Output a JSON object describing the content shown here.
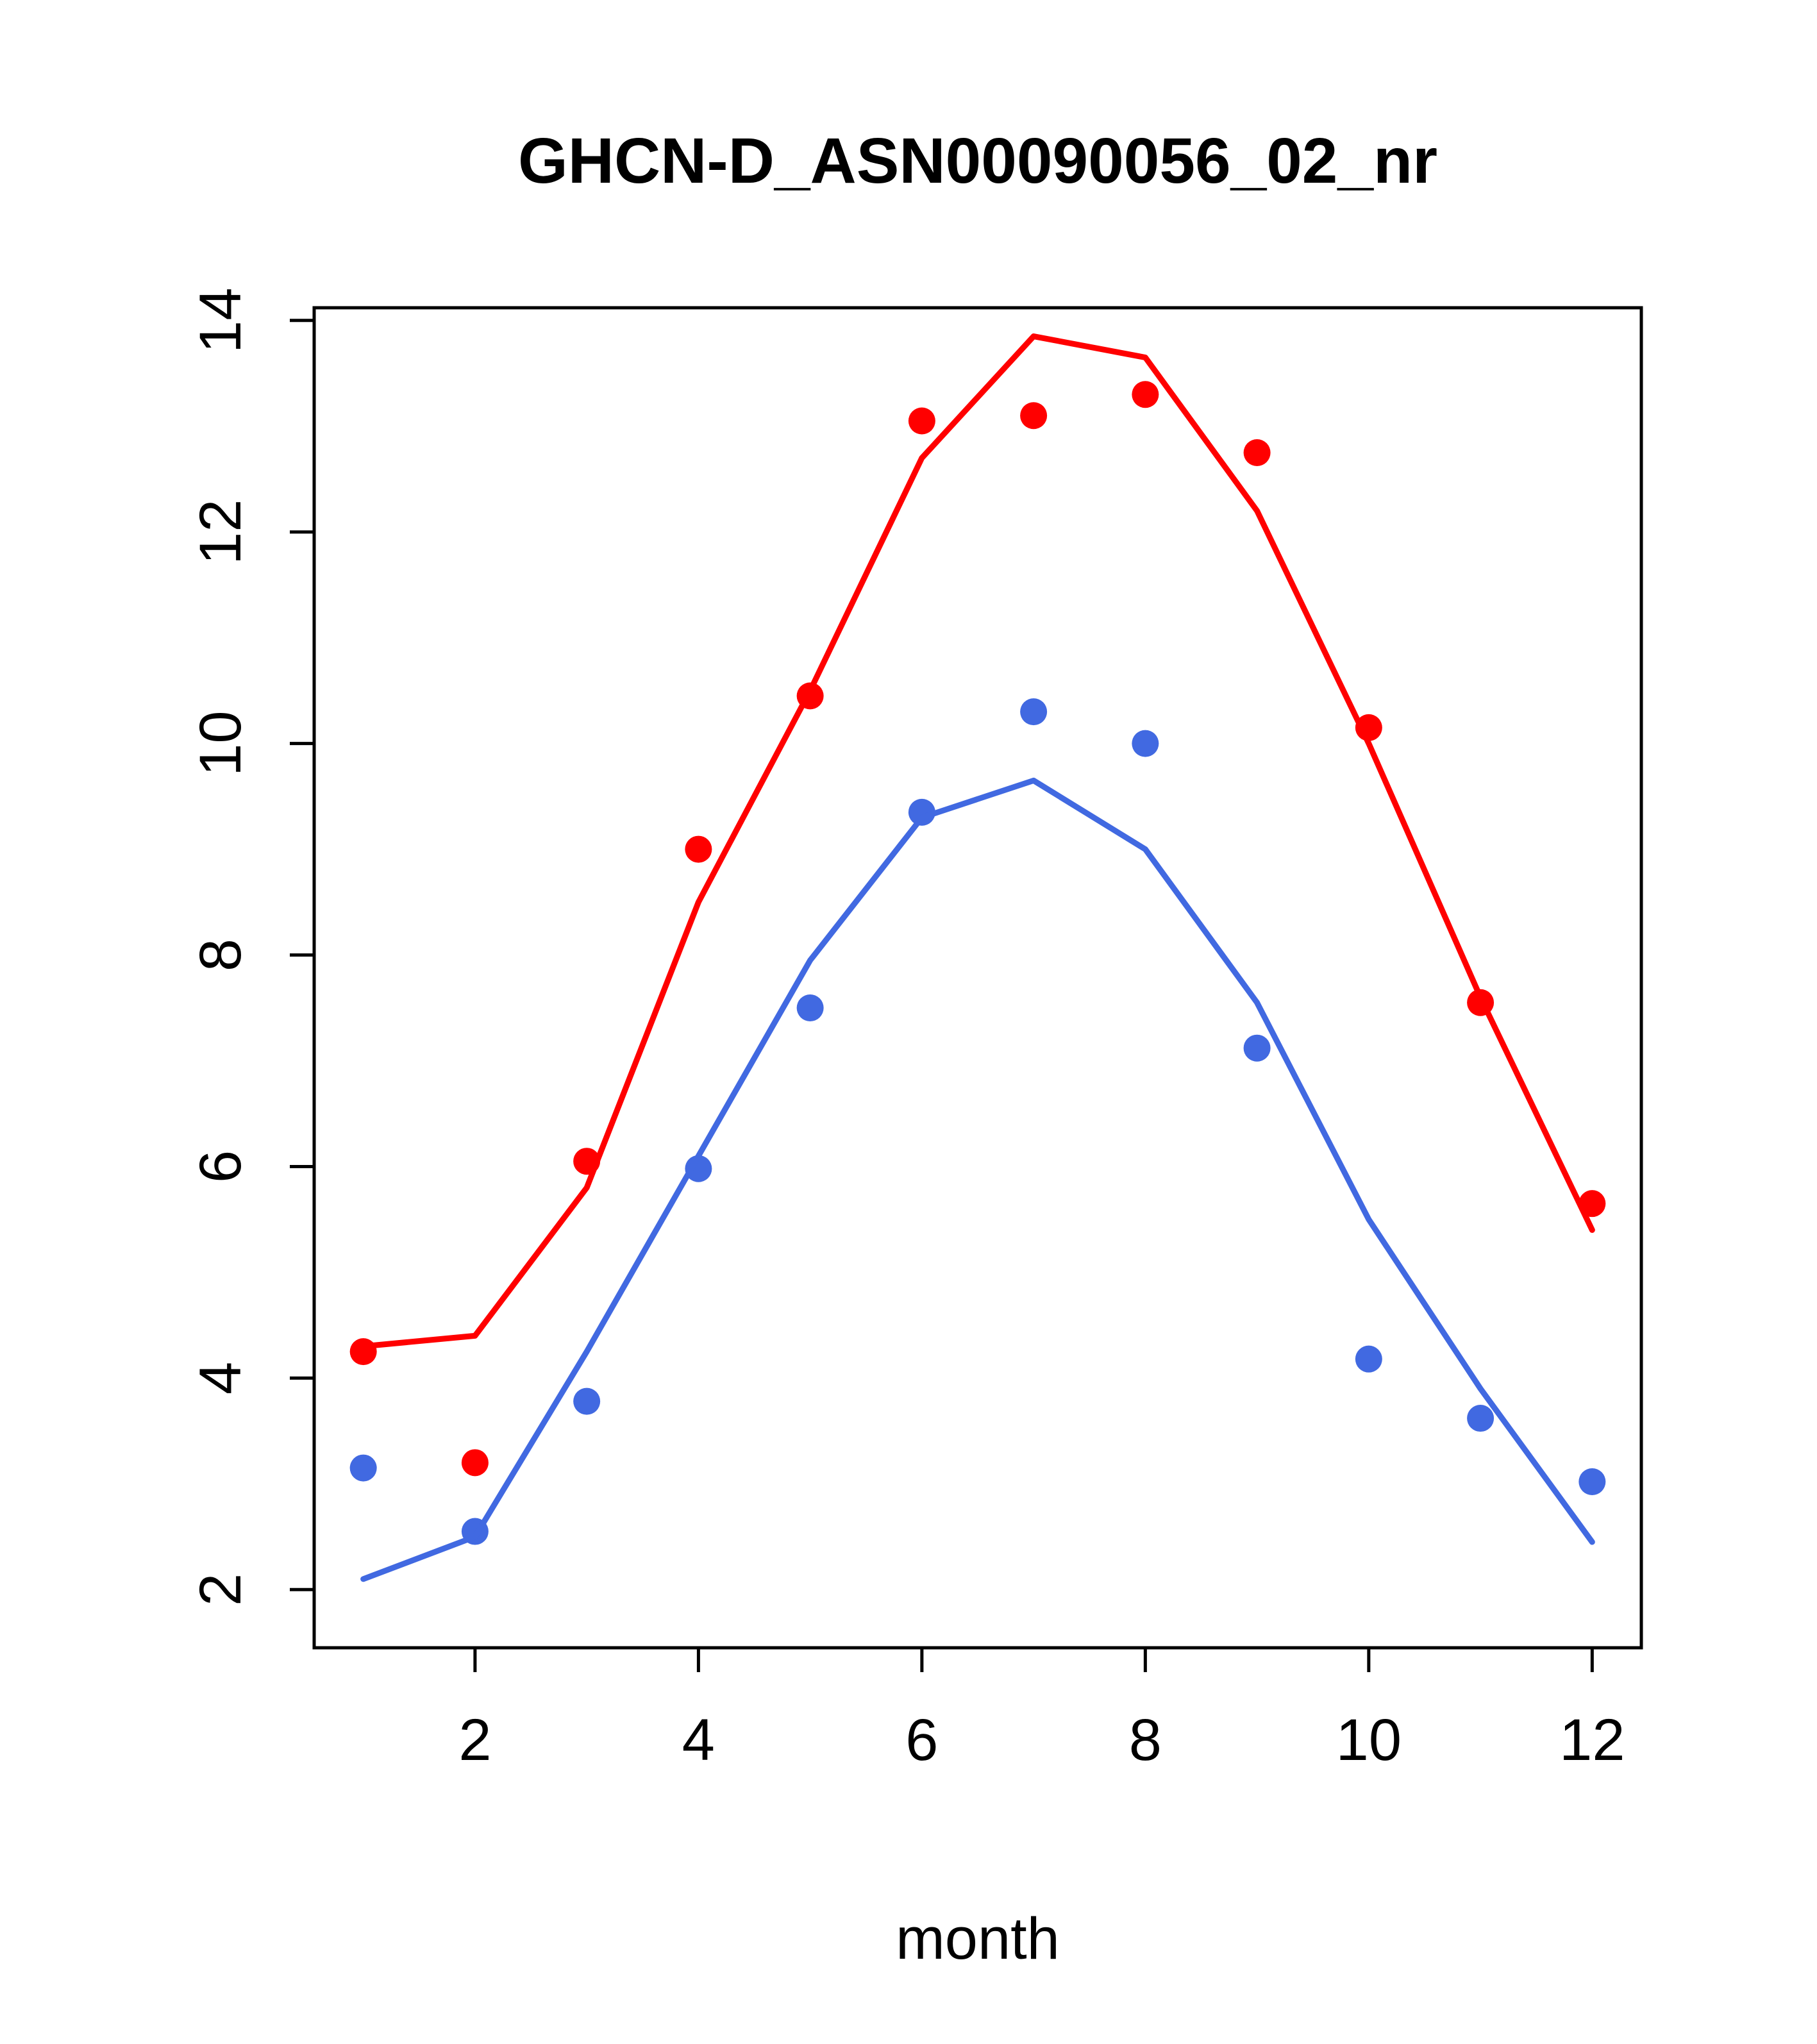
{
  "page": {
    "background": "#ffffff",
    "axis_color": "#000000"
  },
  "chart_data": {
    "type": "line",
    "title": "GHCN-D_ASN00090056_02_nr",
    "xlabel": "month",
    "ylabel": "",
    "x": [
      1,
      2,
      3,
      4,
      5,
      6,
      7,
      8,
      9,
      10,
      11,
      12
    ],
    "xlim": [
      0.56,
      12.44
    ],
    "ylim": [
      1.45,
      14.12
    ],
    "xticks": [
      2,
      4,
      6,
      8,
      10,
      12
    ],
    "yticks": [
      2,
      4,
      6,
      8,
      10,
      12,
      14
    ],
    "grid": false,
    "legend": "none",
    "series": [
      {
        "name": "red-observed-points",
        "style": "points",
        "color": "#ff0000",
        "values": [
          4.25,
          3.2,
          6.05,
          9.0,
          10.45,
          13.05,
          13.1,
          13.3,
          12.75,
          10.15,
          7.55,
          5.65
        ]
      },
      {
        "name": "red-model-line",
        "style": "line",
        "color": "#ff0000",
        "values": [
          4.3,
          4.4,
          5.8,
          8.5,
          10.5,
          12.7,
          13.85,
          13.65,
          12.2,
          10.0,
          7.6,
          5.4
        ]
      },
      {
        "name": "blue-observed-points",
        "style": "points",
        "color": "#4169e1",
        "values": [
          3.15,
          2.55,
          3.78,
          5.98,
          7.5,
          9.35,
          10.3,
          10.0,
          7.12,
          4.18,
          3.62,
          3.02
        ]
      },
      {
        "name": "blue-model-line",
        "style": "line",
        "color": "#4169e1",
        "values": [
          2.1,
          2.5,
          4.25,
          6.1,
          7.95,
          9.3,
          9.65,
          9.0,
          7.55,
          5.5,
          3.9,
          2.45
        ]
      }
    ]
  }
}
